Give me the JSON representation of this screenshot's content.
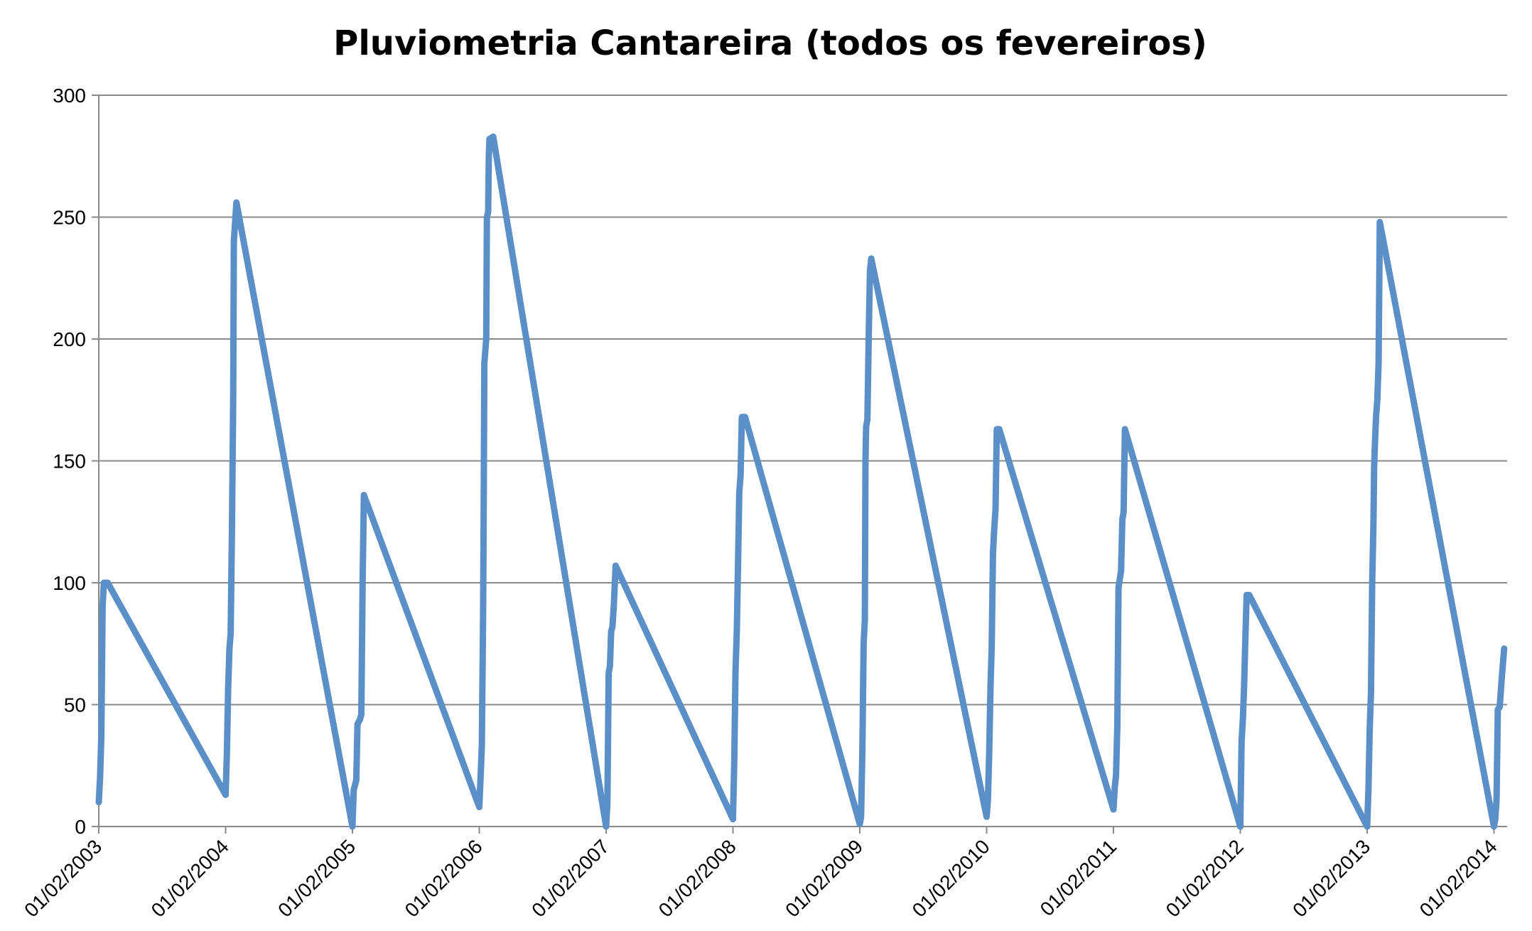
{
  "chart_data": {
    "type": "line",
    "title": "Pluviometria Cantareira (todos os fevereiros)",
    "xlabel": "",
    "ylabel": "",
    "ylim": [
      0,
      300
    ],
    "y_ticks": [
      0,
      50,
      100,
      150,
      200,
      250,
      300
    ],
    "x_tick_labels": [
      "01/02/2003",
      "01/02/2004",
      "01/02/2005",
      "01/02/2006",
      "01/02/2007",
      "01/02/2008",
      "01/02/2009",
      "01/02/2010",
      "01/02/2011",
      "01/02/2012",
      "01/02/2013",
      "01/02/2014"
    ],
    "grid": true,
    "legend": "none",
    "color": "#5b8fc7",
    "series": [
      {
        "values": [
          [
            2003.0,
            10
          ],
          [
            2003.01,
            20
          ],
          [
            2003.02,
            37
          ],
          [
            2003.03,
            90
          ],
          [
            2003.04,
            100
          ],
          [
            2003.07,
            100
          ],
          [
            2004.0,
            13
          ],
          [
            2004.01,
            30
          ],
          [
            2004.02,
            57
          ],
          [
            2004.03,
            73
          ],
          [
            2004.04,
            79
          ],
          [
            2004.05,
            121
          ],
          [
            2004.06,
            176
          ],
          [
            2004.065,
            240
          ],
          [
            2004.085,
            256
          ],
          [
            2005.0,
            0
          ],
          [
            2005.01,
            15
          ],
          [
            2005.03,
            19
          ],
          [
            2005.04,
            42
          ],
          [
            2005.06,
            44
          ],
          [
            2005.07,
            46
          ],
          [
            2005.08,
            100
          ],
          [
            2005.09,
            136
          ],
          [
            2006.0,
            8
          ],
          [
            2006.01,
            20
          ],
          [
            2006.02,
            33
          ],
          [
            2006.03,
            88
          ],
          [
            2006.035,
            130
          ],
          [
            2006.04,
            190
          ],
          [
            2006.055,
            200
          ],
          [
            2006.06,
            250
          ],
          [
            2006.07,
            252
          ],
          [
            2006.075,
            275
          ],
          [
            2006.08,
            282
          ],
          [
            2006.11,
            283
          ],
          [
            2007.0,
            0
          ],
          [
            2007.01,
            10
          ],
          [
            2007.02,
            63
          ],
          [
            2007.03,
            66
          ],
          [
            2007.04,
            80
          ],
          [
            2007.05,
            82
          ],
          [
            2007.06,
            90
          ],
          [
            2007.075,
            107
          ],
          [
            2008.0,
            3
          ],
          [
            2008.01,
            26
          ],
          [
            2008.02,
            64
          ],
          [
            2008.03,
            80
          ],
          [
            2008.04,
            107
          ],
          [
            2008.05,
            137
          ],
          [
            2008.06,
            144
          ],
          [
            2008.07,
            168
          ],
          [
            2008.095,
            168
          ],
          [
            2009.0,
            1
          ],
          [
            2009.01,
            4
          ],
          [
            2009.02,
            31
          ],
          [
            2009.03,
            75
          ],
          [
            2009.04,
            85
          ],
          [
            2009.045,
            150
          ],
          [
            2009.05,
            164
          ],
          [
            2009.06,
            167
          ],
          [
            2009.07,
            200
          ],
          [
            2009.08,
            228
          ],
          [
            2009.09,
            233
          ],
          [
            2010.0,
            4
          ],
          [
            2010.01,
            11
          ],
          [
            2010.02,
            30
          ],
          [
            2010.03,
            57
          ],
          [
            2010.04,
            73
          ],
          [
            2010.05,
            112
          ],
          [
            2010.06,
            122
          ],
          [
            2010.07,
            130
          ],
          [
            2010.08,
            163
          ],
          [
            2010.1,
            163
          ],
          [
            2011.0,
            7
          ],
          [
            2011.01,
            16
          ],
          [
            2011.02,
            21
          ],
          [
            2011.03,
            41
          ],
          [
            2011.04,
            98
          ],
          [
            2011.06,
            105
          ],
          [
            2011.07,
            126
          ],
          [
            2011.08,
            129
          ],
          [
            2011.09,
            163
          ],
          [
            2012.0,
            0
          ],
          [
            2012.01,
            35
          ],
          [
            2012.02,
            44
          ],
          [
            2012.03,
            58
          ],
          [
            2012.04,
            77
          ],
          [
            2012.05,
            95
          ],
          [
            2012.07,
            95
          ],
          [
            2013.0,
            0
          ],
          [
            2013.01,
            15
          ],
          [
            2013.02,
            40
          ],
          [
            2013.03,
            55
          ],
          [
            2013.04,
            100
          ],
          [
            2013.05,
            125
          ],
          [
            2013.055,
            147
          ],
          [
            2013.06,
            155
          ],
          [
            2013.07,
            168
          ],
          [
            2013.08,
            175
          ],
          [
            2013.09,
            190
          ],
          [
            2013.1,
            248
          ],
          [
            2014.0,
            0
          ],
          [
            2014.01,
            3
          ],
          [
            2014.02,
            11
          ],
          [
            2014.03,
            48
          ],
          [
            2014.045,
            49
          ],
          [
            2014.06,
            60
          ],
          [
            2014.08,
            73
          ]
        ]
      }
    ]
  }
}
